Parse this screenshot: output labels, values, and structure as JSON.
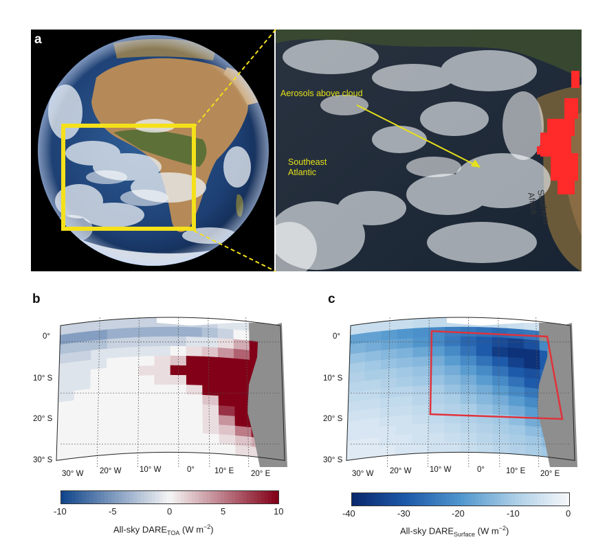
{
  "panels": {
    "a": {
      "letter": "a",
      "annotations": {
        "aerosols": "Aerosols above cloud",
        "southeast": "Southeast",
        "atlantic": "Atlantic",
        "southern": "Southern",
        "africa": "Africa"
      }
    },
    "b": {
      "letter": "b"
    },
    "c": {
      "letter": "c"
    }
  },
  "colors": {
    "highlight_box": "#f5e11a",
    "region_box": "#e0323c",
    "fire": "#ff2a2a",
    "land_gray": "#8e8e8e"
  },
  "chart_data": [
    {
      "type": "heatmap",
      "panel": "b",
      "x_ticks": [
        "30° W",
        "20° W",
        "10° W",
        "0°",
        "10° E",
        "20° E"
      ],
      "y_ticks": [
        "0°",
        "10° S",
        "20° S",
        "30° S"
      ],
      "colorbar": {
        "min": -10,
        "max": 10,
        "ticks": [
          "-10",
          "-5",
          "0",
          "5",
          "10"
        ],
        "title_main": "All-sky DARE",
        "title_sub": "TOA",
        "title_unit": "(W m",
        "title_exp": "−2",
        "title_close": ")",
        "colormap": "blue-white-red"
      },
      "grid": {
        "rows": 14,
        "cols": 14,
        "cells": [
          [
            -2,
            -2,
            -2,
            -2,
            -2,
            -2,
            -2,
            -2,
            -2,
            -2,
            -1,
            -1,
            null,
            null
          ],
          [
            -5,
            -5,
            -5,
            -4,
            -4,
            -4,
            -4,
            -4,
            -4,
            -3,
            -2,
            0,
            null,
            null
          ],
          [
            -3,
            -3,
            -3,
            -2,
            -2,
            -2,
            -2,
            -2,
            -1,
            -1,
            1,
            3,
            10,
            null
          ],
          [
            -2,
            -2,
            -1,
            -1,
            -1,
            -1,
            -1,
            0,
            1,
            2,
            4,
            6,
            10,
            null
          ],
          [
            -1,
            -1,
            -1,
            0,
            0,
            0,
            1,
            2,
            10,
            10,
            10,
            10,
            10,
            null
          ],
          [
            -1,
            -1,
            0,
            0,
            0,
            1,
            1,
            10,
            10,
            10,
            10,
            10,
            10,
            null
          ],
          [
            -1,
            -1,
            0,
            0,
            0,
            0,
            1,
            1,
            10,
            10,
            10,
            10,
            10,
            null
          ],
          [
            -1,
            0,
            0,
            0,
            0,
            0,
            0,
            0,
            1,
            10,
            10,
            10,
            10,
            null
          ],
          [
            0,
            0,
            0,
            0,
            0,
            0,
            0,
            0,
            0,
            2,
            10,
            10,
            10,
            null
          ],
          [
            0,
            0,
            0,
            0,
            0,
            0,
            0,
            0,
            0,
            1,
            8,
            10,
            10,
            10
          ],
          [
            0,
            0,
            0,
            0,
            0,
            0,
            0,
            0,
            0,
            1,
            4,
            10,
            10,
            10
          ],
          [
            0,
            0,
            0,
            0,
            0,
            0,
            0,
            0,
            0,
            1,
            2,
            5,
            9,
            null
          ],
          [
            0,
            0,
            0,
            0,
            0,
            0,
            0,
            0,
            0,
            0,
            1,
            2,
            3,
            null
          ],
          [
            0,
            0,
            0,
            0,
            0,
            0,
            0,
            0,
            0,
            0,
            0,
            1,
            1,
            null
          ]
        ]
      }
    },
    {
      "type": "heatmap",
      "panel": "c",
      "x_ticks": [
        "30° W",
        "20° W",
        "10° W",
        "0°",
        "10° E",
        "20° E"
      ],
      "y_ticks": [
        "0°",
        "10° S",
        "20° S",
        "30° S"
      ],
      "colorbar": {
        "min": -40,
        "max": 0,
        "ticks": [
          "-40",
          "-30",
          "-20",
          "-10",
          "0"
        ],
        "title_main": "All-sky DARE",
        "title_sub": "Surface",
        "title_unit": "(W m",
        "title_exp": "−2",
        "title_close": ")",
        "colormap": "blues"
      },
      "grid": {
        "rows": 14,
        "cols": 14,
        "cells": [
          [
            -6,
            -6,
            -6,
            -6,
            -7,
            -7,
            -7,
            -7,
            -7,
            -7,
            -6,
            -5,
            null,
            null
          ],
          [
            -18,
            -18,
            -19,
            -20,
            -21,
            -22,
            -24,
            -25,
            -26,
            -27,
            -26,
            -25,
            null,
            null
          ],
          [
            -15,
            -16,
            -17,
            -18,
            -20,
            -22,
            -25,
            -28,
            -30,
            -33,
            -35,
            -32,
            -22,
            null
          ],
          [
            -12,
            -13,
            -14,
            -15,
            -17,
            -19,
            -22,
            -26,
            -30,
            -36,
            -38,
            -38,
            -30,
            null
          ],
          [
            -10,
            -11,
            -12,
            -13,
            -14,
            -16,
            -19,
            -22,
            -26,
            -30,
            -35,
            -38,
            -30,
            null
          ],
          [
            -9,
            -10,
            -10,
            -11,
            -12,
            -14,
            -16,
            -19,
            -22,
            -26,
            -30,
            -32,
            -28,
            null
          ],
          [
            -8,
            -8,
            -9,
            -10,
            -11,
            -12,
            -14,
            -16,
            -19,
            -22,
            -26,
            -30,
            -26,
            null
          ],
          [
            -7,
            -7,
            -8,
            -8,
            -9,
            -10,
            -12,
            -14,
            -16,
            -19,
            -22,
            -25,
            -22,
            null
          ],
          [
            -6,
            -6,
            -7,
            -7,
            -8,
            -9,
            -10,
            -12,
            -14,
            -16,
            -19,
            -22,
            -20,
            null
          ],
          [
            -5,
            -5,
            -6,
            -6,
            -7,
            -8,
            -9,
            -10,
            -12,
            -14,
            -16,
            -19,
            -20,
            -18
          ],
          [
            -4,
            -4,
            -5,
            -5,
            -6,
            -7,
            -8,
            -9,
            -10,
            -11,
            -13,
            -16,
            -18,
            -16
          ],
          [
            -4,
            -4,
            -4,
            -5,
            -5,
            -6,
            -7,
            -8,
            -9,
            -10,
            -11,
            -13,
            -15,
            null
          ],
          [
            -3,
            -3,
            -4,
            -4,
            -5,
            -5,
            -6,
            -7,
            -8,
            -9,
            -10,
            -11,
            -13,
            null
          ],
          [
            -3,
            -3,
            -3,
            -4,
            -4,
            -5,
            -5,
            -6,
            -7,
            -8,
            -9,
            -10,
            -11,
            null
          ]
        ]
      }
    }
  ]
}
